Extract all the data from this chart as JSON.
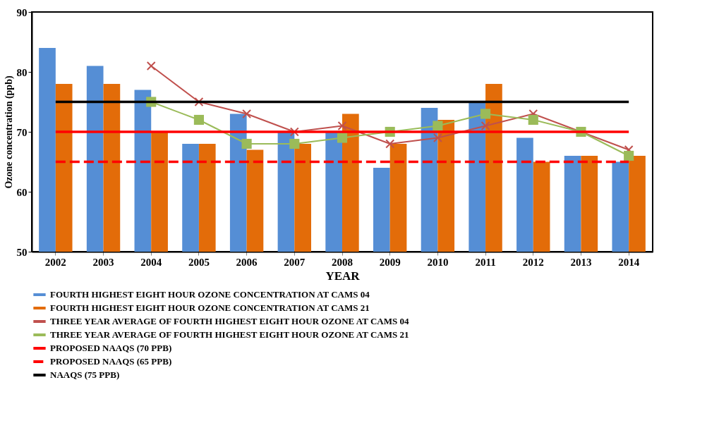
{
  "chart_data": {
    "type": "bar",
    "xlabel": "YEAR",
    "ylabel": "Ozone concentration (ppb)",
    "categories": [
      "2002",
      "2003",
      "2004",
      "2005",
      "2006",
      "2007",
      "2008",
      "2009",
      "2010",
      "2011",
      "2012",
      "2013",
      "2014"
    ],
    "ylim": [
      50,
      90
    ],
    "yticks": [
      50,
      60,
      70,
      80,
      90
    ],
    "grid": false,
    "legend": "bottom",
    "series": [
      {
        "name": "FOURTH HIGHEST EIGHT HOUR OZONE CONCENTRATION AT CAMS 04",
        "color": "#558ed5",
        "values": [
          84,
          81,
          77,
          68,
          73,
          70,
          70,
          64,
          74,
          75,
          69,
          66,
          65
        ]
      },
      {
        "name": "FOURTH HIGHEST EIGHT HOUR OZONE CONCENTRATION AT CAMS 21",
        "color": "#e36c09",
        "values": [
          78,
          78,
          70,
          68,
          67,
          68,
          73,
          68,
          72,
          78,
          65,
          66,
          66
        ]
      },
      {
        "name": "THREE YEAR AVERAGE OF FOURTH HIGHEST EIGHT HOUR OZONE AT CAMS 04",
        "color": "#c0504d",
        "type": "line",
        "marker": "cross",
        "line_style": "solid",
        "values": [
          null,
          null,
          81,
          75,
          73,
          70,
          71,
          68,
          69,
          71,
          73,
          70,
          67
        ]
      },
      {
        "name": "THREE YEAR AVERAGE OF FOURTH HIGHEST EIGHT HOUR OZONE AT CAMS 21",
        "color": "#9bbb59",
        "type": "line",
        "marker": "square",
        "line_style": "solid",
        "values": [
          null,
          null,
          75,
          72,
          68,
          68,
          69,
          70,
          71,
          73,
          72,
          70,
          66
        ]
      },
      {
        "name": "PROPOSED NAAQS (70 PPB)",
        "color": "#ff0000",
        "type": "line",
        "marker": "none",
        "line_style": "solid",
        "values": [
          70,
          70,
          70,
          70,
          70,
          70,
          70,
          70,
          70,
          70,
          70,
          70,
          70
        ]
      },
      {
        "name": "PROPOSED NAAQS (65 PPB)",
        "color": "#ff0000",
        "type": "line",
        "marker": "none",
        "line_style": "dashed",
        "values": [
          65,
          65,
          65,
          65,
          65,
          65,
          65,
          65,
          65,
          65,
          65,
          65,
          65
        ]
      },
      {
        "name": "NAAQS (75 PPB)",
        "color": "#000000",
        "type": "line",
        "marker": "none",
        "line_style": "solid",
        "values": [
          75,
          75,
          75,
          75,
          75,
          75,
          75,
          75,
          75,
          75,
          75,
          75,
          75
        ]
      }
    ]
  }
}
